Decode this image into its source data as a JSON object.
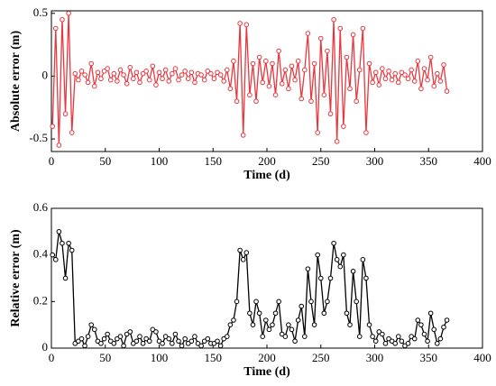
{
  "chart_data": [
    {
      "type": "line",
      "xlabel": "Time (d)",
      "ylabel": "Absolute error (m)",
      "color": "#e8383f",
      "x": [
        1,
        4,
        7,
        10,
        13,
        16,
        19,
        22,
        25,
        28,
        31,
        34,
        37,
        40,
        43,
        46,
        49,
        52,
        55,
        58,
        61,
        64,
        67,
        70,
        73,
        76,
        79,
        82,
        85,
        88,
        91,
        94,
        97,
        100,
        103,
        106,
        109,
        112,
        115,
        118,
        121,
        124,
        127,
        130,
        133,
        136,
        139,
        142,
        145,
        148,
        151,
        154,
        157,
        160,
        163,
        166,
        169,
        172,
        175,
        178,
        181,
        184,
        187,
        190,
        193,
        196,
        199,
        202,
        205,
        208,
        211,
        214,
        217,
        220,
        223,
        226,
        229,
        232,
        235,
        238,
        241,
        244,
        247,
        250,
        253,
        256,
        259,
        262,
        265,
        268,
        271,
        274,
        277,
        280,
        283,
        286,
        289,
        292,
        295,
        298,
        301,
        304,
        307,
        310,
        313,
        316,
        319,
        322,
        325,
        328,
        331,
        334,
        337,
        340,
        343,
        346,
        349,
        352,
        355,
        358,
        361,
        364,
        367
      ],
      "values": [
        -0.4,
        0.38,
        -0.55,
        0.45,
        -0.3,
        0.5,
        -0.45,
        0.02,
        -0.03,
        0.04,
        0.01,
        -0.05,
        0.1,
        -0.08,
        0.03,
        -0.02,
        0.04,
        0.06,
        -0.03,
        0.02,
        -0.04,
        0.05,
        0.01,
        -0.06,
        0.07,
        -0.02,
        0.03,
        -0.05,
        0.02,
        0.04,
        -0.03,
        0.08,
        -0.07,
        0.03,
        -0.02,
        0.05,
        -0.04,
        0.02,
        0.06,
        -0.03,
        0.01,
        0.04,
        -0.02,
        0.03,
        -0.05,
        0.02,
        0.01,
        -0.03,
        0.04,
        0.02,
        -0.02,
        0.03,
        0.01,
        -0.04,
        0.05,
        -0.1,
        0.12,
        -0.2,
        0.42,
        -0.47,
        0.41,
        -0.15,
        0.1,
        -0.2,
        0.15,
        -0.05,
        0.12,
        -0.08,
        0.1,
        -0.15,
        0.2,
        -0.06,
        0.05,
        -0.1,
        0.08,
        -0.03,
        0.12,
        -0.18,
        0.05,
        0.34,
        -0.2,
        0.1,
        -0.45,
        0.3,
        -0.15,
        0.2,
        -0.3,
        0.45,
        -0.52,
        0.38,
        -0.4,
        0.15,
        -0.1,
        0.33,
        -0.2,
        0.05,
        0.38,
        -0.45,
        0.1,
        -0.05,
        0.03,
        -0.07,
        0.06,
        -0.02,
        0.04,
        -0.03,
        0.02,
        -0.05,
        0.03,
        0.01,
        -0.02,
        0.05,
        -0.04,
        0.12,
        -0.1,
        0.06,
        -0.03,
        0.15,
        -0.08,
        0.02,
        -0.04,
        0.09,
        -0.12
      ],
      "xlim": [
        0,
        400
      ],
      "xticks": [
        0,
        50,
        100,
        150,
        200,
        250,
        300,
        350,
        400
      ],
      "ylim": [
        -0.6,
        0.52
      ],
      "yticks": [
        -0.5,
        0,
        0.5
      ]
    },
    {
      "type": "line",
      "xlabel": "Time (d)",
      "ylabel": "Relative error (m)",
      "color": "#000000",
      "x": [
        1,
        4,
        7,
        10,
        13,
        16,
        19,
        22,
        25,
        28,
        31,
        34,
        37,
        40,
        43,
        46,
        49,
        52,
        55,
        58,
        61,
        64,
        67,
        70,
        73,
        76,
        79,
        82,
        85,
        88,
        91,
        94,
        97,
        100,
        103,
        106,
        109,
        112,
        115,
        118,
        121,
        124,
        127,
        130,
        133,
        136,
        139,
        142,
        145,
        148,
        151,
        154,
        157,
        160,
        163,
        166,
        169,
        172,
        175,
        178,
        181,
        184,
        187,
        190,
        193,
        196,
        199,
        202,
        205,
        208,
        211,
        214,
        217,
        220,
        223,
        226,
        229,
        232,
        235,
        238,
        241,
        244,
        247,
        250,
        253,
        256,
        259,
        262,
        265,
        268,
        271,
        274,
        277,
        280,
        283,
        286,
        289,
        292,
        295,
        298,
        301,
        304,
        307,
        310,
        313,
        316,
        319,
        322,
        325,
        328,
        331,
        334,
        337,
        340,
        343,
        346,
        349,
        352,
        355,
        358,
        361,
        364,
        367
      ],
      "values": [
        0.4,
        0.38,
        0.5,
        0.45,
        0.3,
        0.45,
        0.42,
        0.02,
        0.03,
        0.04,
        0.01,
        0.05,
        0.1,
        0.08,
        0.03,
        0.02,
        0.04,
        0.06,
        0.03,
        0.02,
        0.04,
        0.05,
        0.01,
        0.06,
        0.07,
        0.02,
        0.03,
        0.05,
        0.02,
        0.04,
        0.03,
        0.08,
        0.07,
        0.03,
        0.02,
        0.05,
        0.04,
        0.02,
        0.06,
        0.03,
        0.01,
        0.04,
        0.02,
        0.03,
        0.05,
        0.02,
        0.01,
        0.03,
        0.04,
        0.02,
        0.02,
        0.03,
        0.01,
        0.04,
        0.05,
        0.1,
        0.12,
        0.2,
        0.42,
        0.38,
        0.41,
        0.15,
        0.1,
        0.2,
        0.15,
        0.05,
        0.12,
        0.08,
        0.1,
        0.15,
        0.2,
        0.06,
        0.05,
        0.1,
        0.08,
        0.03,
        0.12,
        0.18,
        0.05,
        0.34,
        0.2,
        0.1,
        0.4,
        0.3,
        0.15,
        0.2,
        0.3,
        0.45,
        0.38,
        0.35,
        0.4,
        0.15,
        0.1,
        0.33,
        0.2,
        0.05,
        0.38,
        0.3,
        0.1,
        0.05,
        0.03,
        0.07,
        0.06,
        0.02,
        0.04,
        0.03,
        0.02,
        0.05,
        0.03,
        0.01,
        0.02,
        0.05,
        0.04,
        0.12,
        0.1,
        0.06,
        0.03,
        0.15,
        0.08,
        0.02,
        0.04,
        0.09,
        0.12
      ],
      "xlim": [
        0,
        400
      ],
      "xticks": [
        0,
        50,
        100,
        150,
        200,
        250,
        300,
        350,
        400
      ],
      "ylim": [
        0,
        0.6
      ],
      "yticks": [
        0,
        0.2,
        0.4,
        0.6
      ]
    }
  ]
}
